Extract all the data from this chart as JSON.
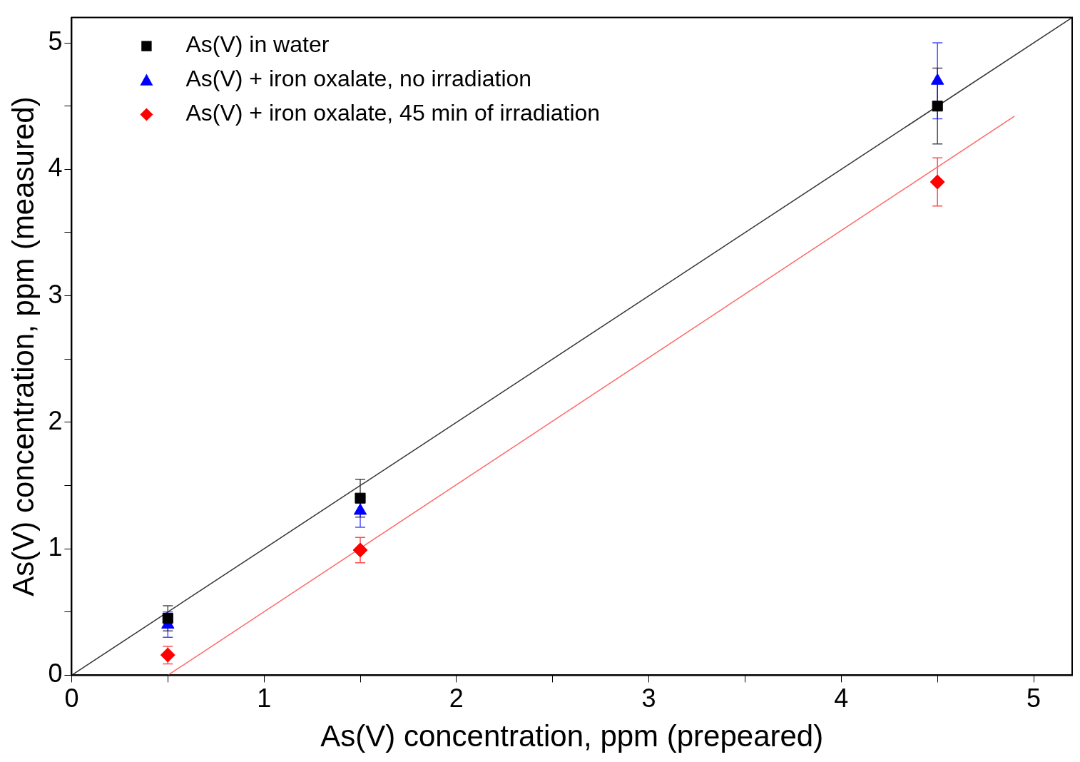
{
  "chart_data": {
    "type": "scatter",
    "xlabel": "As(V) concentration, ppm (prepeared)",
    "ylabel": "As(V) concentration, ppm (measured)",
    "xlim": [
      0,
      5.2
    ],
    "ylim": [
      0,
      5.2
    ],
    "xticks": [
      0,
      {
        "value": 0.5,
        "label": null
      },
      1,
      {
        "value": 1.5,
        "label": null
      },
      2,
      {
        "value": 2.5,
        "label": null
      },
      3,
      {
        "value": 3.5,
        "label": null
      },
      4,
      {
        "value": 4.5,
        "label": null
      },
      5
    ],
    "yticks": [
      0,
      {
        "value": 0.5,
        "label": null
      },
      1,
      {
        "value": 1.5,
        "label": null
      },
      2,
      {
        "value": 2.5,
        "label": null
      },
      3,
      {
        "value": 3.5,
        "label": null
      },
      4,
      {
        "value": 4.5,
        "label": null
      },
      5
    ],
    "grid": false,
    "legend": "top left",
    "series": [
      {
        "name": "As(V) in water",
        "color": "#000000",
        "marker": "square",
        "x": [
          0.5,
          1.5,
          4.5
        ],
        "values": [
          0.45,
          1.4,
          4.5
        ],
        "errors": [
          0.1,
          0.15,
          0.3
        ]
      },
      {
        "name": "As(V) + iron oxalate, no irradiation",
        "color": "#0000ff",
        "marker": "triangle",
        "x": [
          0.5,
          1.5,
          4.5
        ],
        "values": [
          0.4,
          1.3,
          4.7
        ],
        "errors": [
          0.1,
          0.13,
          0.3
        ]
      },
      {
        "name": "As(V) + iron oxalate, 45 min of irradiation",
        "color": "#ff0000",
        "marker": "diamond",
        "x": [
          0.5,
          1.5,
          4.5
        ],
        "values": [
          0.16,
          0.99,
          3.9
        ],
        "errors": [
          0.07,
          0.1,
          0.19
        ]
      },
      {
        "type": "line",
        "color": "#333333",
        "marker": "none",
        "x": [
          0,
          5.2
        ],
        "values": [
          0,
          5.2
        ]
      },
      {
        "type": "line",
        "color": "#ff6666",
        "marker": "none",
        "x": [
          0.5,
          4.9
        ],
        "values": [
          0,
          4.42
        ]
      }
    ]
  }
}
